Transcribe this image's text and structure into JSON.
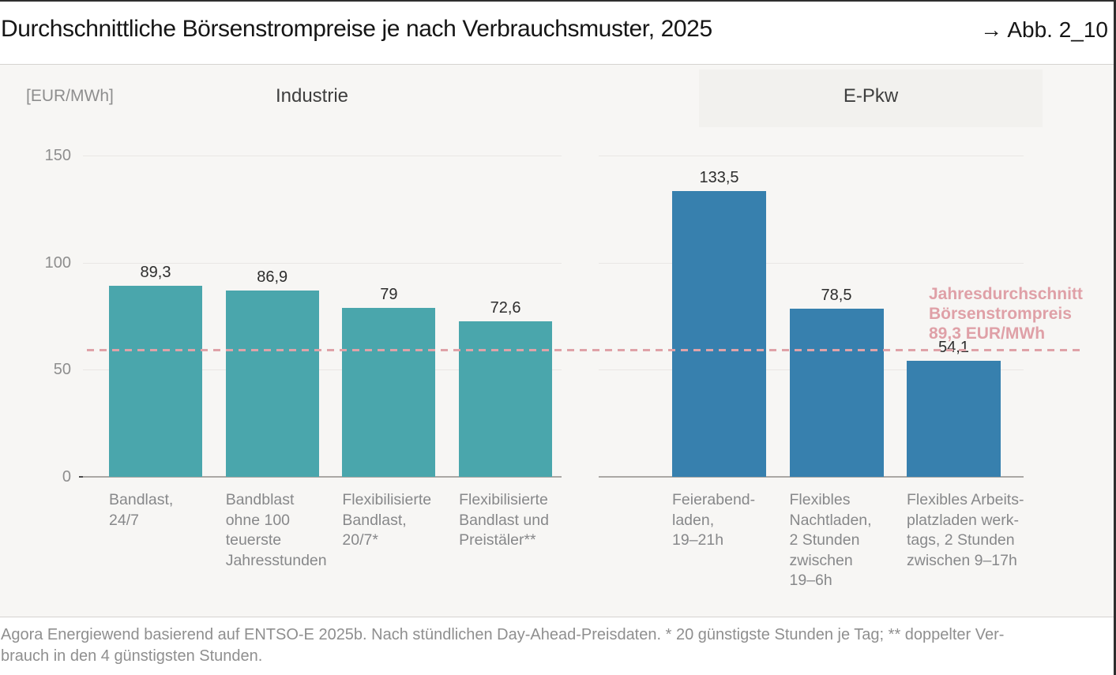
{
  "header": {
    "title": "Durchschnittliche Börsenstrompreise je nach Verbrauchsmuster, 2025",
    "figure_ref": "→ Abb. 2_10"
  },
  "chart_data": {
    "type": "bar",
    "unit_label": "[EUR/MWh]",
    "ylim": [
      0,
      150
    ],
    "y_ticks": [
      0,
      50,
      100,
      150
    ],
    "grid": "horizontal",
    "reference_line": {
      "value": 89.3,
      "color": "#DFA2A8",
      "label_lines": [
        "Jahresdurchschnitt",
        "Börsenstrompreis",
        "89,3 EUR/MWh"
      ]
    },
    "panels": [
      {
        "name": "Industrie",
        "bar_color": "#4AA6AC",
        "bars": [
          {
            "value": 89.3,
            "value_label": "89,3",
            "label_lines": [
              "Bandlast,",
              "24/7"
            ]
          },
          {
            "value": 86.9,
            "value_label": "86,9",
            "label_lines": [
              "Bandblast",
              "ohne 100",
              "teuerste",
              "Jahresstunden"
            ]
          },
          {
            "value": 79,
            "value_label": "79",
            "label_lines": [
              "Flexibilisierte",
              "Bandlast,",
              "20/7*"
            ]
          },
          {
            "value": 72.6,
            "value_label": "72,6",
            "label_lines": [
              "Flexibilisierte",
              "Bandlast und",
              "Preistäler**"
            ]
          }
        ]
      },
      {
        "name": "E-Pkw",
        "bar_color": "#3780AE",
        "bars": [
          {
            "value": 133.5,
            "value_label": "133,5",
            "label_lines": [
              "Feierabend-",
              "laden,",
              "19–21h"
            ]
          },
          {
            "value": 78.5,
            "value_label": "78,5",
            "label_lines": [
              "Flexibles",
              "Nachtladen,",
              "2 Stunden",
              "zwischen",
              "19–6h"
            ]
          },
          {
            "value": 54.1,
            "value_label": "54,1",
            "label_lines": [
              "Flexibles Arbeits-",
              "platzladen werk-",
              "tags, 2 Stunden",
              "zwischen 9–17h"
            ]
          }
        ]
      }
    ]
  },
  "footer": {
    "lines": [
      "Agora Energiewend basierend auf ENTSO-E 2025b. Nach stündlichen Day-Ahead-Preisdaten. * 20 günstigste Stunden je Tag; ** doppelter Ver-",
      "brauch in den 4 günstigsten Stunden."
    ]
  },
  "colors": {
    "industrie_bar": "#4AA6AC",
    "epkw_bar": "#3780AE",
    "reference_pink": "#DFA2A8",
    "background_chart": "#F7F6F4",
    "gridline": "#E9E7E4",
    "text_dark": "#161616",
    "text_gray": "#8E8E8E"
  }
}
